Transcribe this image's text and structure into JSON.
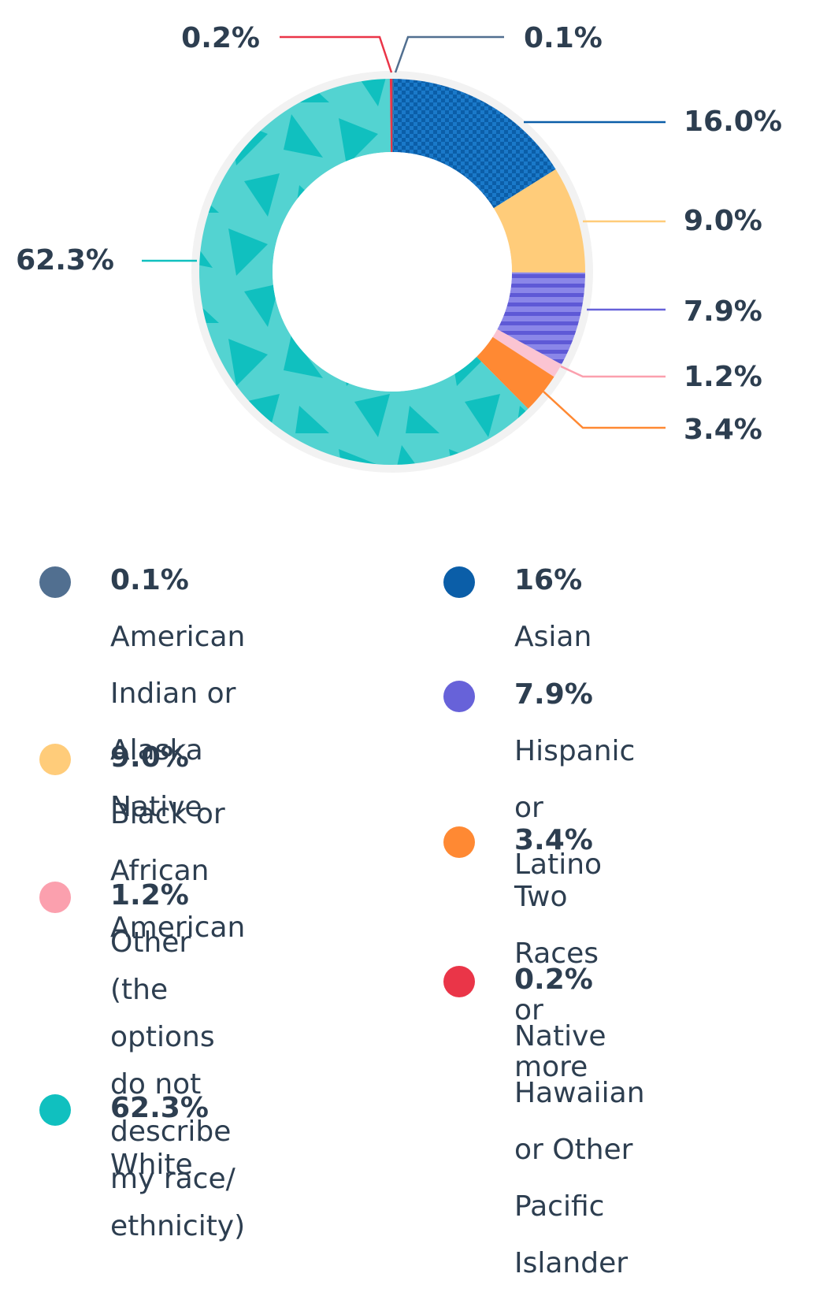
{
  "chart_data": {
    "type": "donut",
    "slices": [
      {
        "value": 0.1,
        "label": "0.1%",
        "color": "#516f90",
        "legend_pct": "0.1%",
        "legend_text": "American Indian or Alaska Native"
      },
      {
        "value": 16.0,
        "label": "16.0%",
        "color": "#0b5ea8",
        "legend_pct": "16%",
        "legend_text": "Asian"
      },
      {
        "value": 9.0,
        "label": "9.0%",
        "color": "#ffcc7a",
        "legend_pct": "9.0%",
        "legend_text": "Black or African American"
      },
      {
        "value": 7.9,
        "label": "7.9%",
        "color": "#6762d9",
        "legend_pct": "7.9%",
        "legend_text": "Hispanic or Latino"
      },
      {
        "value": 1.2,
        "label": "1.2%",
        "color": "#fbb8c8",
        "legend_pct": "1.2%",
        "legend_text": "Other (the options do not describe my race/ ethnicity)"
      },
      {
        "value": 3.4,
        "label": "3.4%",
        "color": "#ff8933",
        "legend_pct": "3.4%",
        "legend_text": "Two Races or more"
      },
      {
        "value": 62.3,
        "label": "62.3%",
        "color": "#10c0bf",
        "legend_pct": "62.3%",
        "legend_text": "White"
      },
      {
        "value": 0.2,
        "label": "0.2%",
        "color": "#ea3548",
        "legend_pct": "0.2%",
        "legend_text": "Native Hawaiian or Other Pacific Islander"
      }
    ]
  },
  "legend": {
    "left": [
      {
        "pct": "0.1%",
        "text": "American Indian or Alaska Native",
        "color": "#516f90"
      },
      {
        "pct": "9.0%",
        "text": "Black or African American",
        "color": "#ffcc7a"
      },
      {
        "pct": "1.2%",
        "text": "Other (the options do not describe my race/ ethnicity)",
        "color": "#fba0ae"
      },
      {
        "pct": "62.3%",
        "text": "White",
        "color": "#10c0bf"
      }
    ],
    "right": [
      {
        "pct": "16%",
        "text": "Asian",
        "color": "#0b5ea8"
      },
      {
        "pct": "7.9%",
        "text": "Hispanic or Latino",
        "color": "#6762d9"
      },
      {
        "pct": "3.4%",
        "text": "Two Races or more",
        "color": "#ff8933"
      },
      {
        "pct": "0.2%",
        "text": "Native Hawaiian or Other Pacific Islander",
        "color": "#ea3548"
      }
    ]
  }
}
